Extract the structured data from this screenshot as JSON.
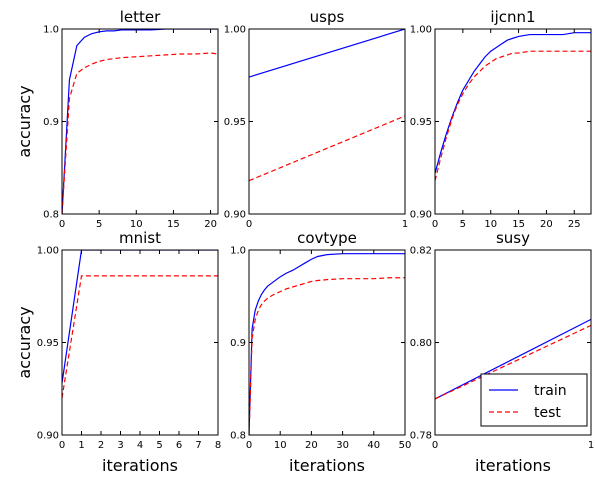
{
  "legend": {
    "entries": [
      {
        "name": "train",
        "color": "#0000ff",
        "dash": "solid"
      },
      {
        "name": "test",
        "color": "#ff0000",
        "dash": "dashed"
      }
    ],
    "placement": "lower-right of susy panel"
  },
  "chart_data": [
    {
      "type": "line",
      "title": "letter",
      "xlabel": "",
      "ylabel": "accuracy",
      "xlim": [
        0,
        21
      ],
      "ylim": [
        0.8,
        1.0
      ],
      "xticks": [
        "0",
        "5",
        "10",
        "15",
        "20"
      ],
      "xtick_values": [
        0,
        5,
        10,
        15,
        20
      ],
      "yticks": [
        "0.8",
        "0.9",
        "1.0"
      ],
      "ytick_values": [
        0.8,
        0.9,
        1.0
      ],
      "series": [
        {
          "name": "train",
          "color": "#0000ff",
          "dash": "solid",
          "x": [
            0,
            1,
            2,
            3,
            4,
            5,
            6,
            7,
            8,
            10,
            12,
            14,
            16,
            18,
            20,
            21
          ],
          "y": [
            0.8,
            0.945,
            0.982,
            0.991,
            0.995,
            0.997,
            0.998,
            0.998,
            0.999,
            0.999,
            0.999,
            1.0,
            1.0,
            1.0,
            1.0,
            1.0
          ]
        },
        {
          "name": "test",
          "color": "#ff0000",
          "dash": "dashed",
          "x": [
            0,
            1,
            2,
            3,
            4,
            5,
            6,
            7,
            8,
            10,
            12,
            14,
            16,
            18,
            20,
            21
          ],
          "y": [
            0.8,
            0.925,
            0.952,
            0.958,
            0.962,
            0.965,
            0.967,
            0.968,
            0.969,
            0.97,
            0.971,
            0.972,
            0.973,
            0.973,
            0.974,
            0.973
          ]
        }
      ]
    },
    {
      "type": "line",
      "title": "usps",
      "xlabel": "",
      "ylabel": "",
      "xlim": [
        0,
        1
      ],
      "ylim": [
        0.9,
        1.0
      ],
      "xticks": [
        "0",
        "1"
      ],
      "xtick_values": [
        0,
        1
      ],
      "yticks": [
        "0.90",
        "0.95",
        "1.00"
      ],
      "ytick_values": [
        0.9,
        0.95,
        1.0
      ],
      "series": [
        {
          "name": "train",
          "color": "#0000ff",
          "dash": "solid",
          "x": [
            0,
            1
          ],
          "y": [
            0.974,
            1.0
          ]
        },
        {
          "name": "test",
          "color": "#ff0000",
          "dash": "dashed",
          "x": [
            0,
            1
          ],
          "y": [
            0.918,
            0.953
          ]
        }
      ]
    },
    {
      "type": "line",
      "title": "ijcnn1",
      "xlabel": "",
      "ylabel": "",
      "xlim": [
        0,
        28
      ],
      "ylim": [
        0.9,
        1.0
      ],
      "xticks": [
        "0",
        "5",
        "10",
        "15",
        "20",
        "25"
      ],
      "xtick_values": [
        0,
        5,
        10,
        15,
        20,
        25
      ],
      "yticks": [
        "0.90",
        "0.95",
        "1.00"
      ],
      "ytick_values": [
        0.9,
        0.95,
        1.0
      ],
      "series": [
        {
          "name": "train",
          "color": "#0000ff",
          "dash": "solid",
          "x": [
            0,
            1,
            2,
            3,
            4,
            5,
            6,
            7,
            8,
            9,
            10,
            11,
            12,
            13,
            14,
            15,
            17,
            19,
            21,
            23,
            25,
            27,
            28
          ],
          "y": [
            0.922,
            0.933,
            0.943,
            0.952,
            0.96,
            0.967,
            0.972,
            0.977,
            0.981,
            0.985,
            0.988,
            0.99,
            0.992,
            0.994,
            0.995,
            0.996,
            0.997,
            0.997,
            0.997,
            0.997,
            0.998,
            0.998,
            0.998
          ]
        },
        {
          "name": "test",
          "color": "#ff0000",
          "dash": "dashed",
          "x": [
            0,
            1,
            2,
            3,
            4,
            5,
            6,
            7,
            8,
            9,
            10,
            11,
            12,
            13,
            14,
            15,
            17,
            19,
            21,
            23,
            25,
            27,
            28
          ],
          "y": [
            0.918,
            0.93,
            0.941,
            0.951,
            0.959,
            0.965,
            0.97,
            0.974,
            0.977,
            0.98,
            0.982,
            0.984,
            0.985,
            0.986,
            0.987,
            0.987,
            0.988,
            0.988,
            0.988,
            0.988,
            0.988,
            0.988,
            0.988
          ]
        }
      ]
    },
    {
      "type": "line",
      "title": "mnist",
      "xlabel": "iterations",
      "ylabel": "accuracy",
      "xlim": [
        0,
        8
      ],
      "ylim": [
        0.9,
        1.0
      ],
      "xticks": [
        "0",
        "1",
        "2",
        "3",
        "4",
        "5",
        "6",
        "7",
        "8"
      ],
      "xtick_values": [
        0,
        1,
        2,
        3,
        4,
        5,
        6,
        7,
        8
      ],
      "yticks": [
        "0.90",
        "0.95",
        "1.00"
      ],
      "ytick_values": [
        0.9,
        0.95,
        1.0
      ],
      "series": [
        {
          "name": "train",
          "color": "#0000ff",
          "dash": "solid",
          "x": [
            0,
            1,
            2,
            3,
            4,
            5,
            6,
            7,
            8
          ],
          "y": [
            0.928,
            1.0,
            1.0,
            1.0,
            1.0,
            1.0,
            1.0,
            1.0,
            1.0
          ]
        },
        {
          "name": "test",
          "color": "#ff0000",
          "dash": "dashed",
          "x": [
            0,
            1,
            2,
            3,
            4,
            5,
            6,
            7,
            8
          ],
          "y": [
            0.92,
            0.986,
            0.986,
            0.986,
            0.986,
            0.986,
            0.986,
            0.986,
            0.986
          ]
        }
      ]
    },
    {
      "type": "line",
      "title": "covtype",
      "xlabel": "iterations",
      "ylabel": "",
      "xlim": [
        0,
        50
      ],
      "ylim": [
        0.8,
        1.0
      ],
      "xticks": [
        "0",
        "10",
        "20",
        "30",
        "40",
        "50"
      ],
      "xtick_values": [
        0,
        10,
        20,
        30,
        40,
        50
      ],
      "yticks": [
        "0.8",
        "0.9",
        "1.0"
      ],
      "ytick_values": [
        0.8,
        0.9,
        1.0
      ],
      "series": [
        {
          "name": "train",
          "color": "#0000ff",
          "dash": "solid",
          "x": [
            0,
            1,
            2,
            3,
            4,
            5,
            6,
            8,
            10,
            12,
            14,
            16,
            18,
            20,
            22,
            25,
            30,
            35,
            40,
            45,
            50
          ],
          "y": [
            0.8,
            0.915,
            0.935,
            0.945,
            0.952,
            0.957,
            0.961,
            0.966,
            0.971,
            0.975,
            0.978,
            0.982,
            0.986,
            0.99,
            0.993,
            0.995,
            0.996,
            0.996,
            0.996,
            0.996,
            0.996
          ]
        },
        {
          "name": "test",
          "color": "#ff0000",
          "dash": "dashed",
          "x": [
            0,
            1,
            2,
            3,
            4,
            5,
            6,
            8,
            10,
            12,
            14,
            16,
            18,
            20,
            22,
            25,
            30,
            35,
            40,
            45,
            50
          ],
          "y": [
            0.8,
            0.905,
            0.925,
            0.935,
            0.941,
            0.945,
            0.948,
            0.952,
            0.955,
            0.958,
            0.96,
            0.962,
            0.964,
            0.966,
            0.967,
            0.968,
            0.969,
            0.969,
            0.969,
            0.97,
            0.97
          ]
        }
      ]
    },
    {
      "type": "line",
      "title": "susy",
      "xlabel": "iterations",
      "ylabel": "",
      "xlim": [
        0,
        1
      ],
      "ylim": [
        0.78,
        0.82
      ],
      "xticks": [
        "0",
        "1"
      ],
      "xtick_values": [
        0,
        1
      ],
      "yticks": [
        "0.78",
        "0.80",
        "0.82"
      ],
      "ytick_values": [
        0.78,
        0.8,
        0.82
      ],
      "series": [
        {
          "name": "train",
          "color": "#0000ff",
          "dash": "solid",
          "x": [
            0,
            1
          ],
          "y": [
            0.7878,
            0.805
          ]
        },
        {
          "name": "test",
          "color": "#ff0000",
          "dash": "dashed",
          "x": [
            0,
            1
          ],
          "y": [
            0.7878,
            0.8037
          ]
        }
      ]
    }
  ]
}
